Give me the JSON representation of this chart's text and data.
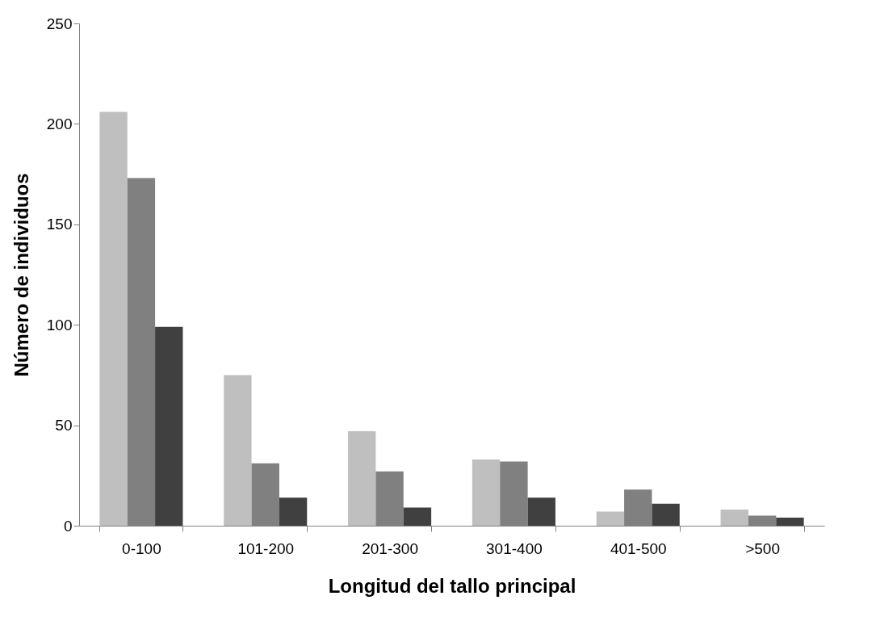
{
  "chart_data": {
    "type": "bar",
    "xlabel": "Longitud del tallo principal",
    "ylabel": "Número de individuos",
    "categories": [
      "0-100",
      "101-200",
      "201-300",
      "301-400",
      "401-500",
      ">500"
    ],
    "series": [
      {
        "color": "#bfbfbf",
        "values": [
          206,
          75,
          47,
          33,
          7,
          8
        ]
      },
      {
        "color": "#808080",
        "values": [
          173,
          31,
          27,
          32,
          18,
          5
        ]
      },
      {
        "color": "#404040",
        "values": [
          99,
          14,
          9,
          14,
          11,
          4
        ]
      }
    ],
    "ylim": [
      0,
      250
    ],
    "yticks": [
      0,
      50,
      100,
      150,
      200,
      250
    ],
    "grid": false,
    "legend": false
  }
}
